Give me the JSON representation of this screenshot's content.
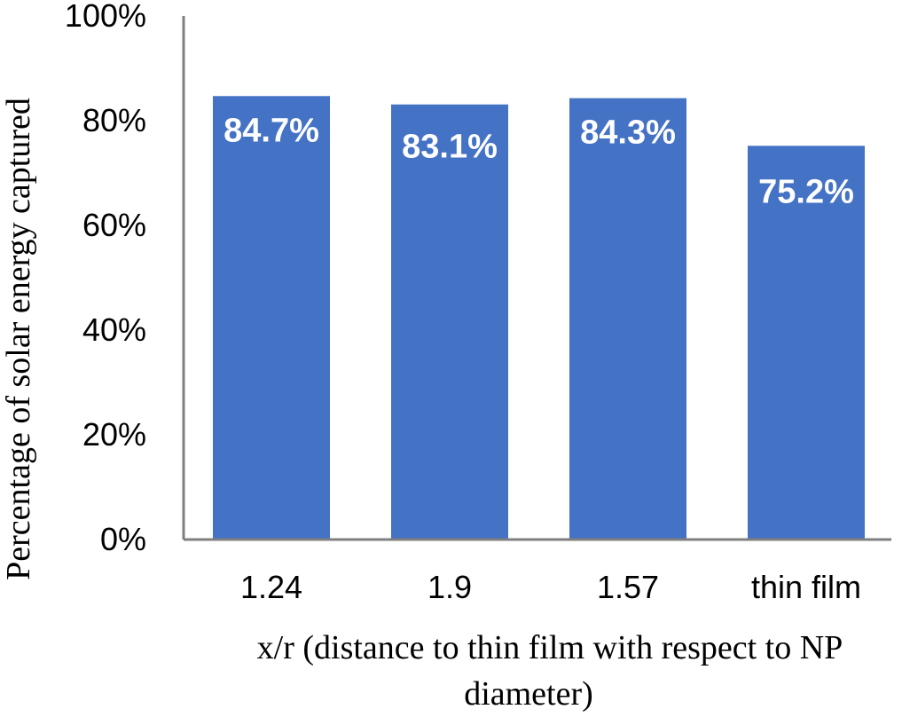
{
  "chart_data": {
    "type": "bar",
    "categories": [
      "1.24",
      "1.9",
      "1.57",
      "thin film"
    ],
    "values": [
      84.7,
      83.1,
      84.3,
      75.2
    ],
    "data_labels": [
      "84.7%",
      "83.1%",
      "84.3%",
      "75.2%"
    ],
    "ylim": [
      0,
      100
    ],
    "yticks": [
      0,
      20,
      40,
      60,
      80,
      100
    ],
    "ytick_labels": [
      "0%",
      "20%",
      "40%",
      "60%",
      "80%",
      "100%"
    ],
    "ylabel": "Percentage of solar energy captured",
    "xlabel_line1": "x/r  (distance to thin film with respect to NP",
    "xlabel_line2": "diameter)",
    "grid": false,
    "legend": "none",
    "bar_color": "#4472C4",
    "axis_color": "#7F7F7F"
  }
}
